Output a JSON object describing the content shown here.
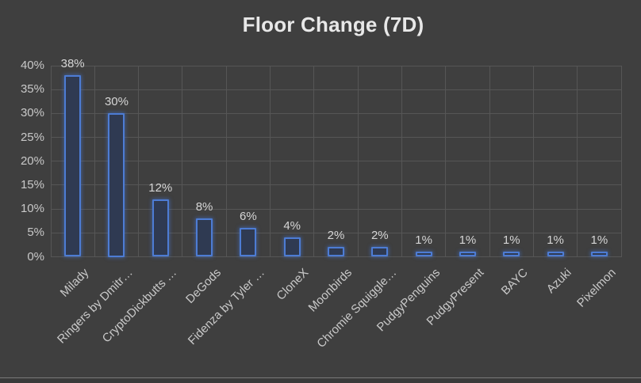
{
  "title": "Floor Change (7D)",
  "chart_data": {
    "type": "bar",
    "title": "Floor Change (7D)",
    "categories": [
      "Milady",
      "Ringers by Dmitr…",
      "CryptoDickbutts …",
      "DeGods",
      "Fidenza by Tyler …",
      "CloneX",
      "Moonbirds",
      "Chromie Squiggle…",
      "PudgyPenguins",
      "PudgyPresent",
      "BAYC",
      "Azuki",
      "Pixelmon"
    ],
    "values": [
      38,
      30,
      12,
      8,
      6,
      4,
      2,
      2,
      1,
      1,
      1,
      1,
      1
    ],
    "data_labels": [
      "38%",
      "30%",
      "12%",
      "8%",
      "6%",
      "4%",
      "2%",
      "2%",
      "1%",
      "1%",
      "1%",
      "1%",
      "1%"
    ],
    "y_ticks": [
      "0%",
      "5%",
      "10%",
      "15%",
      "20%",
      "25%",
      "30%",
      "35%",
      "40%"
    ],
    "ylim": [
      0,
      40
    ],
    "grid": true,
    "legend_position": "none",
    "xlabel": "",
    "ylabel": ""
  },
  "colors": {
    "background": "#3F3F3F",
    "gridline": "#565656",
    "bar_border": "#4D7CD4",
    "bar_fill": "#2F3A52",
    "bar_glow": "rgba(67,115,205,0.55)",
    "title_text": "#E8E8E8",
    "axis_text": "#C9C9C9",
    "data_label_text": "#D6D6D6",
    "bottom_edge_line": "#7A7A7A",
    "bottom_edge_fill": "#3A3A3A"
  }
}
